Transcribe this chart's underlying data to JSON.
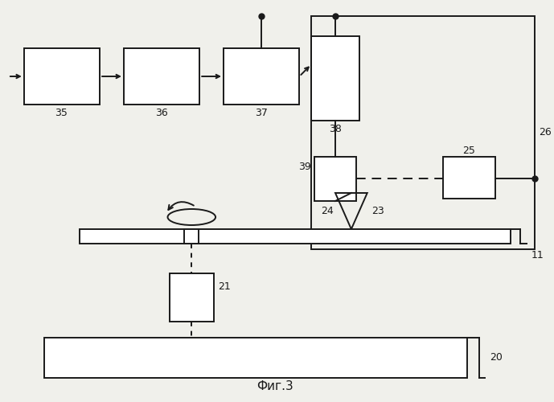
{
  "bg_color": "#f0f0eb",
  "line_color": "#1a1a1a",
  "title": "Фиг.3",
  "lw": 1.4
}
